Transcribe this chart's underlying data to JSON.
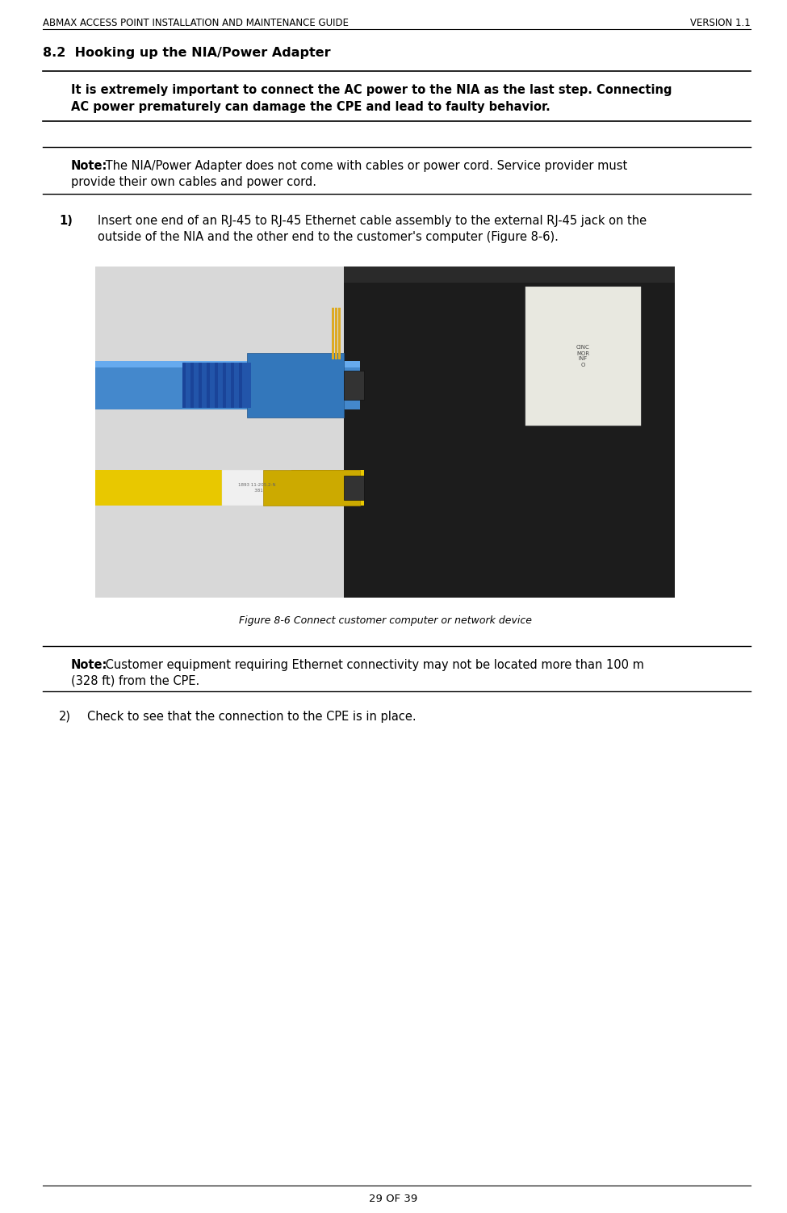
{
  "header_left": "ABMAX ACCESS POINT INSTALLATION AND MAINTENANCE GUIDE",
  "header_right": "VERSION 1.1",
  "section_title": "8.2  Hooking up the NIA/Power Adapter",
  "warning_text_line1": "It is extremely important to connect the AC power to the NIA as the last step. Connecting",
  "warning_text_line2": "AC power prematurely can damage the CPE and lead to faulty behavior.",
  "note1_bold": "Note:",
  "note1_text": " The NIA/Power Adapter does not come with cables or power cord. Service provider must",
  "note1_text2": "provide their own cables and power cord.",
  "step1_num": "1)",
  "step1_line1": "Insert one end of an RJ-45 to RJ-45 Ethernet cable assembly to the external RJ-45 jack on the",
  "step1_line2": "outside of the NIA and the other end to the customer's computer (Figure 8-6).",
  "figure_caption": "Figure 8-6 Connect customer computer or network device",
  "note2_bold": "Note:",
  "note2_text": " Customer equipment requiring Ethernet connectivity may not be located more than 100 m",
  "note2_text2": "(328 ft) from the CPE.",
  "step2_num": "2)",
  "step2_text": "Check to see that the connection to the CPE is in place.",
  "footer_text": "29 OF 39",
  "bg_color": "#ffffff",
  "text_color": "#000000",
  "header_font_size": 8.5,
  "section_font_size": 11.5,
  "body_font_size": 10.5,
  "note_font_size": 10.5,
  "caption_font_size": 9,
  "footer_font_size": 9.5
}
